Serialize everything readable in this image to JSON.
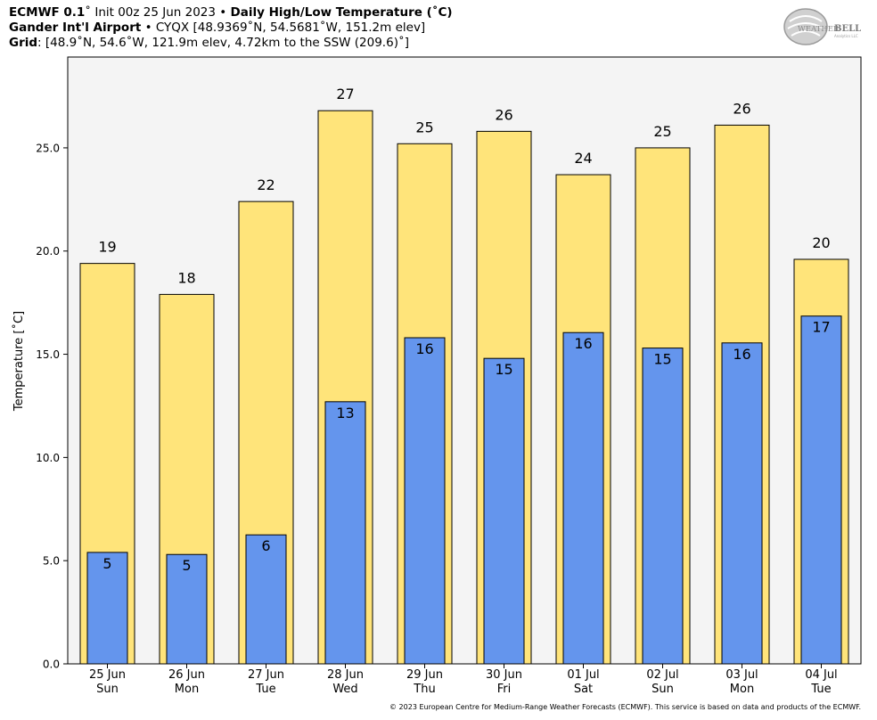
{
  "header": {
    "line1_bold_a": "ECMWF 0.1",
    "line1_deg": "˚",
    "line1_mid": " Init 00z 25 Jun 2023 • ",
    "line1_bold_b": "Daily High/Low Temperature (˚C)",
    "line2_bold": "Gander Int'l Airport",
    "line2_rest": " • CYQX [48.9369˚N, 54.5681˚W, 151.2m elev]",
    "line3_bold": "Grid",
    "line3_rest": ": [48.9˚N, 54.6˚W, 121.9m elev, 4.72km to the SSW (209.6)˚]"
  },
  "logo": {
    "text_a": "WEATHER",
    "text_b": "BELL",
    "small": "Analytics LLC"
  },
  "copyright": "© 2023 European Centre for Medium-Range Weather Forecasts (ECMWF). This service is based on data and products of the ECMWF.",
  "colors": {
    "high": "#FFE47A",
    "low": "#6495ED",
    "plot_bg": "#F4F4F4"
  },
  "chart_data": {
    "type": "bar",
    "title": "Daily High/Low Temperature (˚C)",
    "ylabel": "Temperature [˚C]",
    "ylim": [
      0,
      29.4
    ],
    "yticks": [
      "0.0",
      "5.0",
      "10.0",
      "15.0",
      "20.0",
      "25.0"
    ],
    "categories": [
      [
        "25 Jun",
        "Sun"
      ],
      [
        "26 Jun",
        "Mon"
      ],
      [
        "27 Jun",
        "Tue"
      ],
      [
        "28 Jun",
        "Wed"
      ],
      [
        "29 Jun",
        "Thu"
      ],
      [
        "30 Jun",
        "Fri"
      ],
      [
        "01 Jul",
        "Sat"
      ],
      [
        "02 Jul",
        "Sun"
      ],
      [
        "03 Jul",
        "Mon"
      ],
      [
        "04 Jul",
        "Tue"
      ]
    ],
    "series": [
      {
        "values": [
          19.4,
          17.9,
          22.4,
          26.8,
          25.2,
          25.8,
          23.7,
          25.0,
          26.1,
          19.6
        ],
        "labels": [
          "19",
          "18",
          "22",
          "27",
          "25",
          "26",
          "24",
          "25",
          "26",
          "20"
        ]
      },
      {
        "values": [
          5.4,
          5.3,
          6.25,
          12.7,
          15.8,
          14.8,
          16.05,
          15.3,
          15.55,
          16.85
        ],
        "labels": [
          "5",
          "5",
          "6",
          "13",
          "16",
          "15",
          "16",
          "15",
          "16",
          "17"
        ]
      }
    ]
  }
}
